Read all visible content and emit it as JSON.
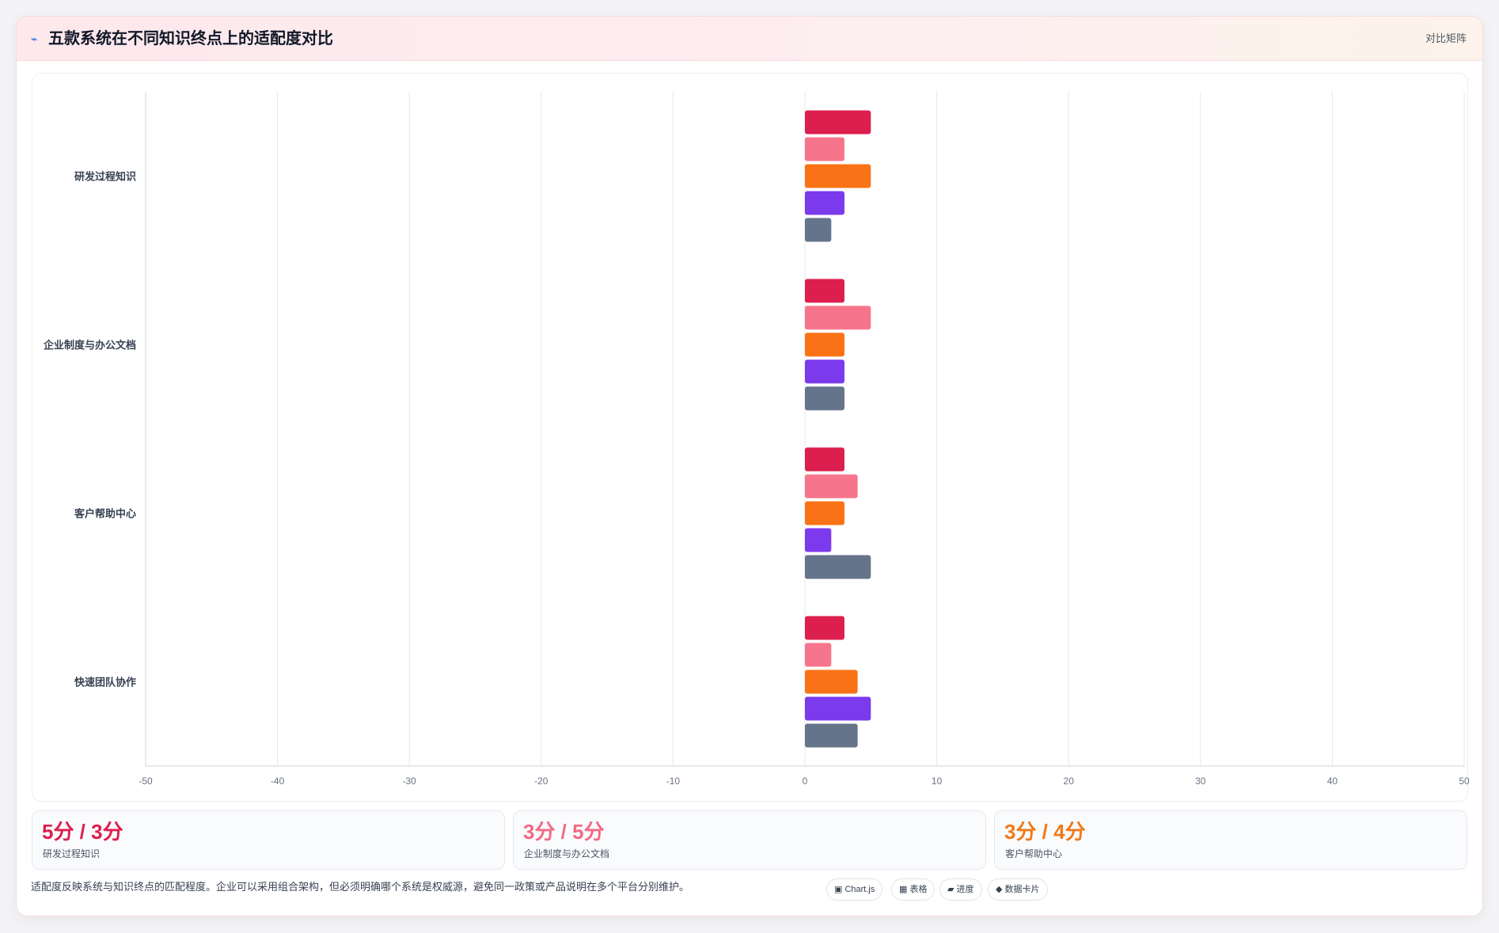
{
  "header": {
    "icon": "chart-trend-icon",
    "title": "五款系统在不同知识终点上的适配度对比",
    "badge": "对比矩阵"
  },
  "chart_data": {
    "type": "bar",
    "orientation": "horizontal",
    "categories": [
      "研发过程知识",
      "企业制度与办公文档",
      "客户帮助中心",
      "快速团队协作"
    ],
    "series": [
      {
        "values": [
          5,
          3,
          3,
          3
        ],
        "color": "#dc1f4e"
      },
      {
        "values": [
          3,
          5,
          4,
          2
        ],
        "color": "#f7758c"
      },
      {
        "values": [
          5,
          3,
          3,
          4
        ],
        "color": "#f97316"
      },
      {
        "values": [
          3,
          3,
          2,
          5
        ],
        "color": "#7c3aed"
      },
      {
        "values": [
          2,
          3,
          5,
          4
        ],
        "color": "#64748b"
      }
    ],
    "xlim": [
      -50,
      50
    ],
    "xticks": [
      -50,
      -40,
      -30,
      -20,
      -10,
      0,
      10,
      20,
      30,
      40,
      50
    ],
    "grid": true,
    "legend": "none"
  },
  "stats": [
    {
      "value": "5分 / 3分",
      "label": "研发过程知识",
      "color": "#dc1f4e"
    },
    {
      "value": "3分 / 5分",
      "label": "企业制度与办公文档",
      "color": "#f06b86"
    },
    {
      "value": "3分 / 4分",
      "label": "客户帮助中心",
      "color": "#f07a1b"
    }
  ],
  "footer": {
    "note": "适配度反映系统与知识终点的匹配程度。企业可以采用组合架构，但必须明确哪个系统是权威源，避免同一政策或产品说明在多个平台分别维护。",
    "chips": [
      "▣ Chart.js",
      "▦ 表格",
      "▰ 进度",
      "◆ 数据卡片"
    ]
  }
}
